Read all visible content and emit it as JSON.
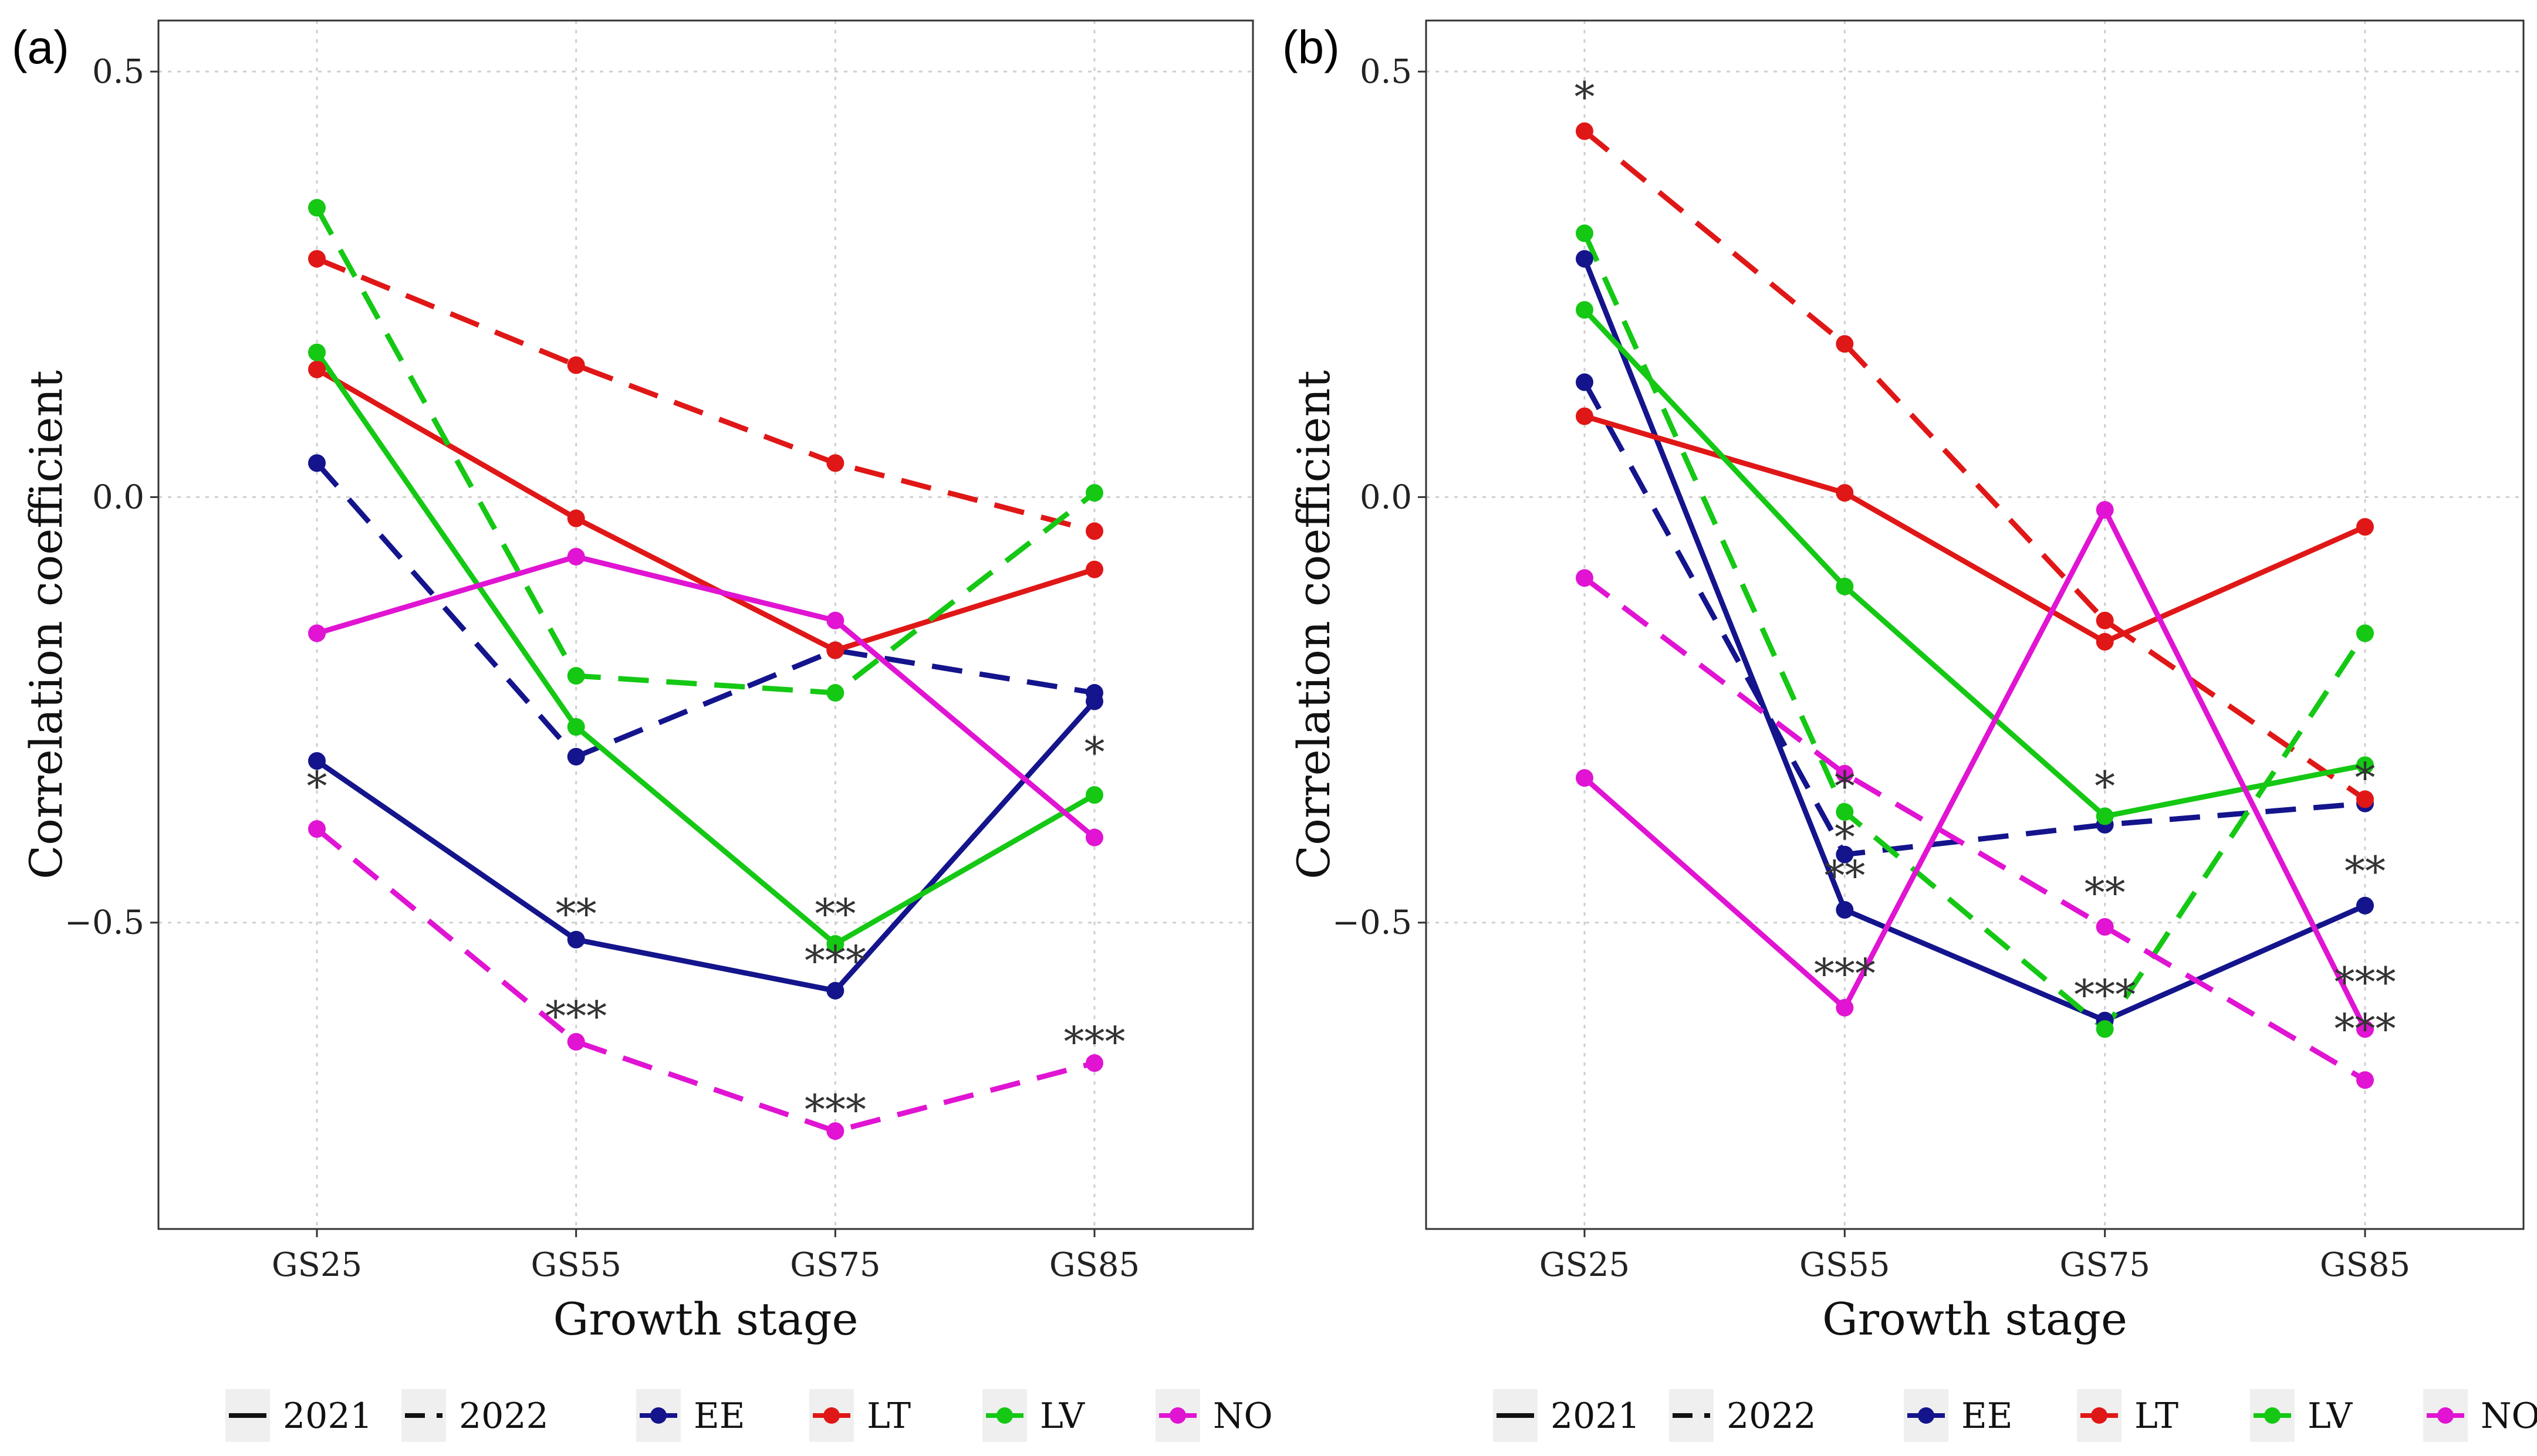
{
  "legend": {
    "years": [
      {
        "label": "2021",
        "style": "solid"
      },
      {
        "label": "2022",
        "style": "dashed"
      }
    ],
    "countries": [
      {
        "code": "EE",
        "label": "EE",
        "color": "#14148c"
      },
      {
        "code": "LT",
        "label": "LT",
        "color": "#e01717"
      },
      {
        "code": "LV",
        "label": "LV",
        "color": "#14c814"
      },
      {
        "code": "NO",
        "label": "NO",
        "color": "#e014d2"
      }
    ]
  },
  "chart_data": [
    {
      "panel": "(a)",
      "type": "line",
      "xlabel": "Growth stage",
      "ylabel": "Correlation coefficient",
      "categories": [
        "GS25",
        "GS55",
        "GS75",
        "GS85"
      ],
      "yticks": [
        0.5,
        0.0,
        -0.5
      ],
      "ytick_labels": [
        "0.5",
        "0.0",
        "−0.5"
      ],
      "ylim": [
        -0.86,
        0.56
      ],
      "grid": true,
      "series": [
        {
          "name": "EE 2021",
          "country": "EE",
          "year": "2021",
          "values": [
            -0.31,
            -0.52,
            -0.58,
            -0.24
          ]
        },
        {
          "name": "EE 2022",
          "country": "EE",
          "year": "2022",
          "values": [
            0.04,
            -0.305,
            -0.18,
            -0.23
          ]
        },
        {
          "name": "LT 2021",
          "country": "LT",
          "year": "2021",
          "values": [
            0.15,
            -0.025,
            -0.18,
            -0.085
          ]
        },
        {
          "name": "LT 2022",
          "country": "LT",
          "year": "2022",
          "values": [
            0.28,
            0.155,
            0.04,
            -0.04
          ]
        },
        {
          "name": "LV 2021",
          "country": "LV",
          "year": "2021",
          "values": [
            0.17,
            -0.27,
            -0.525,
            -0.35
          ]
        },
        {
          "name": "LV 2022",
          "country": "LV",
          "year": "2022",
          "values": [
            0.34,
            -0.21,
            -0.23,
            0.005
          ]
        },
        {
          "name": "NO 2021",
          "country": "NO",
          "year": "2021",
          "values": [
            -0.16,
            -0.07,
            -0.145,
            -0.4
          ]
        },
        {
          "name": "NO 2022",
          "country": "NO",
          "year": "2022",
          "values": [
            -0.39,
            -0.64,
            -0.745,
            -0.665
          ]
        }
      ],
      "annotations": [
        {
          "category": "GS25",
          "y": -0.34,
          "text": "*"
        },
        {
          "category": "GS55",
          "y": -0.49,
          "text": "**"
        },
        {
          "category": "GS55",
          "y": -0.61,
          "text": "***"
        },
        {
          "category": "GS75",
          "y": -0.49,
          "text": "**"
        },
        {
          "category": "GS75",
          "y": -0.545,
          "text": "***"
        },
        {
          "category": "GS75",
          "y": -0.72,
          "text": "***"
        },
        {
          "category": "GS85",
          "y": -0.3,
          "text": "*"
        },
        {
          "category": "GS85",
          "y": -0.64,
          "text": "***"
        }
      ]
    },
    {
      "panel": "(b)",
      "type": "line",
      "xlabel": "Growth stage",
      "ylabel": "Correlation coefficient",
      "categories": [
        "GS25",
        "GS55",
        "GS75",
        "GS85"
      ],
      "yticks": [
        0.5,
        0.0,
        -0.5
      ],
      "ytick_labels": [
        "0.5",
        "0.0",
        "−0.5"
      ],
      "ylim": [
        -0.86,
        0.56
      ],
      "grid": true,
      "series": [
        {
          "name": "EE 2021",
          "country": "EE",
          "year": "2021",
          "values": [
            0.28,
            -0.485,
            -0.615,
            -0.48
          ]
        },
        {
          "name": "EE 2022",
          "country": "EE",
          "year": "2022",
          "values": [
            0.135,
            -0.42,
            -0.385,
            -0.36
          ]
        },
        {
          "name": "LT 2021",
          "country": "LT",
          "year": "2021",
          "values": [
            0.095,
            0.005,
            -0.17,
            -0.035
          ]
        },
        {
          "name": "LT 2022",
          "country": "LT",
          "year": "2022",
          "values": [
            0.43,
            0.18,
            -0.145,
            -0.355
          ]
        },
        {
          "name": "LV 2021",
          "country": "LV",
          "year": "2021",
          "values": [
            0.22,
            -0.105,
            -0.375,
            -0.315
          ]
        },
        {
          "name": "LV 2022",
          "country": "LV",
          "year": "2022",
          "values": [
            0.31,
            -0.37,
            -0.625,
            -0.16
          ]
        },
        {
          "name": "NO 2021",
          "country": "NO",
          "year": "2021",
          "values": [
            -0.33,
            -0.6,
            -0.015,
            -0.625
          ]
        },
        {
          "name": "NO 2022",
          "country": "NO",
          "year": "2022",
          "values": [
            -0.095,
            -0.325,
            -0.505,
            -0.685
          ]
        }
      ],
      "annotations": [
        {
          "category": "GS25",
          "y": 0.47,
          "text": "*"
        },
        {
          "category": "GS55",
          "y": -0.34,
          "text": "*"
        },
        {
          "category": "GS55",
          "y": -0.4,
          "text": "*"
        },
        {
          "category": "GS55",
          "y": -0.445,
          "text": "**"
        },
        {
          "category": "GS55",
          "y": -0.56,
          "text": "***"
        },
        {
          "category": "GS75",
          "y": -0.34,
          "text": "*"
        },
        {
          "category": "GS75",
          "y": -0.465,
          "text": "**"
        },
        {
          "category": "GS75",
          "y": -0.585,
          "text": "***"
        },
        {
          "category": "GS85",
          "y": -0.33,
          "text": "*"
        },
        {
          "category": "GS85",
          "y": -0.44,
          "text": "**"
        },
        {
          "category": "GS85",
          "y": -0.57,
          "text": "***"
        },
        {
          "category": "GS85",
          "y": -0.625,
          "text": "***"
        }
      ]
    }
  ]
}
